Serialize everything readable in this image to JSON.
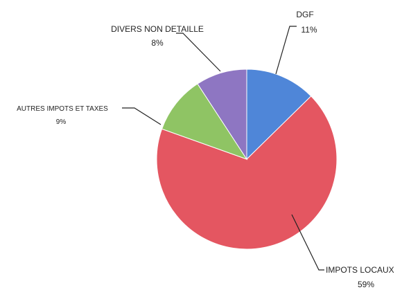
{
  "chart_data": {
    "type": "pie",
    "title": "",
    "slices": [
      {
        "label": "DGF",
        "value": 11,
        "value_label": "11%",
        "color": "#4f86d8"
      },
      {
        "label": "IMPOTS LOCAUX",
        "value": 59,
        "value_label": "59%",
        "color": "#e45661"
      },
      {
        "label": "AUTRES IMPOTS ET TAXES",
        "value": 9,
        "value_label": "9%",
        "color": "#8fc464"
      },
      {
        "label": "DIVERS NON DETAILLE",
        "value": 8,
        "value_label": "8%",
        "color": "#8e76c2"
      }
    ],
    "start_angle_deg": 0,
    "direction": "clockwise",
    "legend": "none"
  }
}
